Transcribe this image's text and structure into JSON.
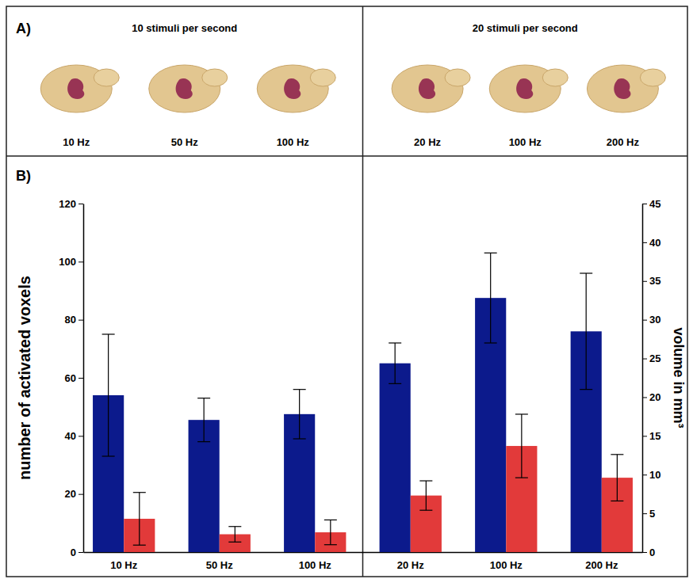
{
  "panel_a": {
    "label": "A)",
    "groups": [
      {
        "title": "10 stimuli per second",
        "images": [
          "10 Hz",
          "50 Hz",
          "100 Hz"
        ]
      },
      {
        "title": "20 stimuli per second",
        "images": [
          "20 Hz",
          "100 Hz",
          "200 Hz"
        ]
      }
    ]
  },
  "chart_data": {
    "type": "bar",
    "panel_label": "B)",
    "categories": [
      "10 Hz",
      "50 Hz",
      "100 Hz",
      "20 Hz",
      "100 Hz",
      "200 Hz"
    ],
    "ylabel": "number of activated voxels",
    "y2label": "volume in mm³",
    "ylim": [
      0,
      120
    ],
    "yticks": [
      0,
      20,
      40,
      60,
      80,
      100,
      120
    ],
    "y2lim": [
      0,
      45
    ],
    "y2ticks": [
      0,
      5,
      10,
      15,
      20,
      25,
      30,
      35,
      40,
      45
    ],
    "grid": false,
    "series": [
      {
        "color": "#0c1a8c",
        "values": [
          54,
          45.5,
          47.5,
          65,
          87.5,
          76
        ],
        "errors": [
          21,
          7.5,
          8.5,
          7,
          15.5,
          20
        ]
      },
      {
        "color": "#e23a3a",
        "axis": "y2",
        "values": [
          4.3,
          2.3,
          2.55,
          7.3,
          13.7,
          9.6
        ],
        "errors": [
          3.4,
          1.0,
          1.6,
          1.9,
          4.1,
          3.0
        ]
      }
    ]
  }
}
